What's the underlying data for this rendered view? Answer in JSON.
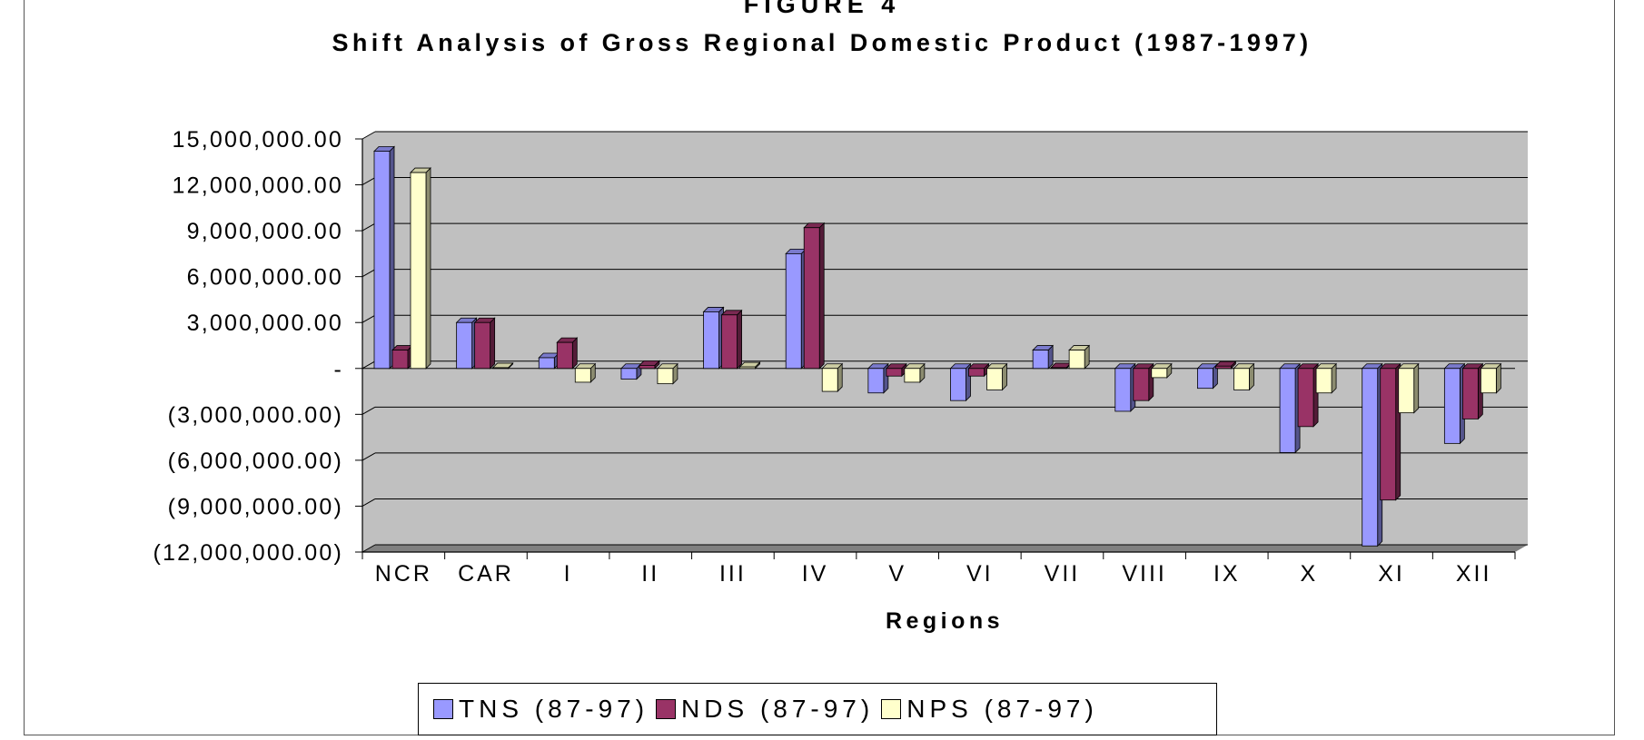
{
  "figure_label": "FIGURE 4",
  "colors": {
    "wall": "#c0c0c0",
    "floor": "#808080",
    "gridline": "#000000",
    "series": [
      "#9999ff",
      "#993366",
      "#ffffcc"
    ]
  },
  "chart_data": {
    "type": "bar",
    "title": "Shift Analysis of Gross Regional Domestic Product (1987-1997)",
    "xlabel": "Regions",
    "ylabel": "",
    "ylim": [
      -12000000,
      15000000
    ],
    "yticks": [
      15000000,
      12000000,
      9000000,
      6000000,
      3000000,
      0,
      -3000000,
      -6000000,
      -9000000,
      -12000000
    ],
    "ytick_labels": [
      "15,000,000.00",
      "12,000,000.00",
      "9,000,000.00",
      "6,000,000.00",
      "3,000,000.00",
      "-",
      "(3,000,000.00)",
      "(6,000,000.00)",
      "(9,000,000.00)",
      "(12,000,000.00)"
    ],
    "grid": true,
    "legend_position": "bottom",
    "categories": [
      "NCR",
      "CAR",
      "I",
      "II",
      "III",
      "IV",
      "V",
      "VI",
      "VII",
      "VIII",
      "IX",
      "X",
      "XI",
      "XII"
    ],
    "series": [
      {
        "name": "TNS (87-97)",
        "values": [
          14200000,
          3000000,
          700000,
          -700000,
          3700000,
          7500000,
          -1600000,
          -2100000,
          1200000,
          -2800000,
          -1300000,
          -5500000,
          -11600000,
          -4900000
        ]
      },
      {
        "name": "NDS (87-97)",
        "values": [
          1200000,
          3000000,
          1700000,
          200000,
          3500000,
          9200000,
          -500000,
          -500000,
          50000,
          -2100000,
          150000,
          -3800000,
          -8600000,
          -3300000
        ]
      },
      {
        "name": "NPS (87-97)",
        "values": [
          12800000,
          50000,
          -900000,
          -1000000,
          100000,
          -1500000,
          -900000,
          -1400000,
          1200000,
          -600000,
          -1400000,
          -1600000,
          -2900000,
          -1600000
        ]
      }
    ]
  }
}
